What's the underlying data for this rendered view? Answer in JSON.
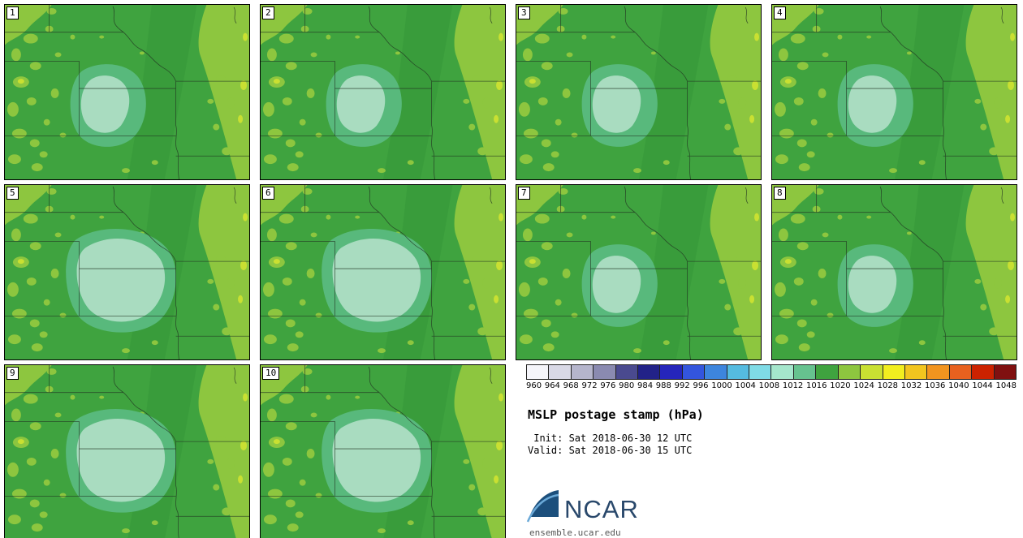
{
  "panels": [
    {
      "label": "1",
      "variant": "a"
    },
    {
      "label": "2",
      "variant": "a"
    },
    {
      "label": "3",
      "variant": "a"
    },
    {
      "label": "4",
      "variant": "a"
    },
    {
      "label": "5",
      "variant": "b"
    },
    {
      "label": "6",
      "variant": "b"
    },
    {
      "label": "7",
      "variant": "a"
    },
    {
      "label": "8",
      "variant": "a"
    },
    {
      "label": "9",
      "variant": "b"
    },
    {
      "label": "10",
      "variant": "b"
    }
  ],
  "colorbar": {
    "ticks": [
      "960",
      "964",
      "968",
      "972",
      "976",
      "980",
      "984",
      "988",
      "992",
      "996",
      "1000",
      "1004",
      "1008",
      "1012",
      "1016",
      "1020",
      "1024",
      "1028",
      "1032",
      "1036",
      "1040",
      "1044",
      "1048"
    ],
    "colors": [
      "#f5f5fa",
      "#d9d9e6",
      "#b5b5cc",
      "#8a8ab0",
      "#4a4a8f",
      "#222288",
      "#2525bb",
      "#3355dd",
      "#3d85dd",
      "#55bbe0",
      "#7fdbe6",
      "#a5e6cc",
      "#66c28f",
      "#3fa33f",
      "#8dc63f",
      "#c9e032",
      "#f2ee1f",
      "#f2c51f",
      "#f2941f",
      "#e8611f",
      "#cc2200",
      "#801010"
    ],
    "units": "hPa"
  },
  "info": {
    "title": "MSLP postage stamp (hPa)",
    "init_line": " Init: Sat 2018-06-30 12 UTC",
    "valid_line": "Valid: Sat 2018-06-30 15 UTC"
  },
  "footer": {
    "logo_text": "NCAR",
    "site": "ensemble.ucar.edu"
  },
  "map_colors": {
    "base": "#3fa33f",
    "dark": "#37993a",
    "bright": "#8dc63f",
    "brighter": "#c9e032",
    "teal": "#58b97c",
    "pale": "#a9dcc0",
    "line": "#223322"
  }
}
